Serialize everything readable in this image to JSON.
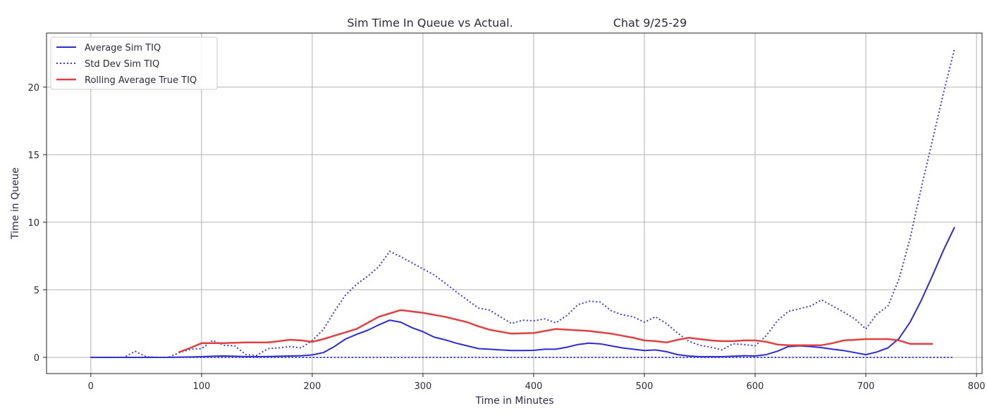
{
  "chart_data": {
    "type": "line",
    "title_left": "Sim Time In Queue vs Actual.",
    "title_right": "Chat 9/25-29",
    "xlabel": "Time in Minutes",
    "ylabel": "Time in Queue",
    "xlim": [
      -40,
      805
    ],
    "ylim": [
      -1.2,
      24.0
    ],
    "xticks": [
      0,
      100,
      200,
      300,
      400,
      500,
      600,
      700,
      800
    ],
    "yticks": [
      0,
      5,
      10,
      15,
      20
    ],
    "grid": true,
    "legend_position": "upper-left",
    "colors": {
      "sim_avg": "#2b2bd6",
      "sim_std": "#3a3ad8",
      "true_avg": "#e04040",
      "grid": "#b0b0b0"
    },
    "series": [
      {
        "name": "Average Sim TIQ",
        "style": "solid",
        "color": "#2b2bd6",
        "x": [
          0,
          10,
          20,
          30,
          40,
          50,
          60,
          70,
          80,
          90,
          100,
          110,
          120,
          130,
          140,
          150,
          160,
          170,
          180,
          190,
          200,
          210,
          220,
          230,
          240,
          250,
          260,
          270,
          280,
          290,
          300,
          310,
          320,
          330,
          340,
          350,
          360,
          370,
          380,
          390,
          400,
          410,
          420,
          430,
          440,
          450,
          460,
          470,
          480,
          490,
          500,
          510,
          520,
          530,
          540,
          550,
          560,
          570,
          580,
          590,
          600,
          610,
          620,
          630,
          640,
          650,
          660,
          670,
          680,
          690,
          700,
          710,
          720,
          730,
          740,
          750,
          760,
          770,
          780
        ],
        "values": [
          0,
          0,
          0,
          0,
          0,
          0,
          0,
          0,
          0.02,
          0.03,
          0.05,
          0.08,
          0.1,
          0.08,
          0.05,
          0.05,
          0.06,
          0.08,
          0.1,
          0.12,
          0.18,
          0.35,
          0.8,
          1.35,
          1.7,
          2.0,
          2.4,
          2.75,
          2.6,
          2.2,
          1.9,
          1.5,
          1.3,
          1.05,
          0.85,
          0.65,
          0.6,
          0.55,
          0.5,
          0.5,
          0.52,
          0.6,
          0.6,
          0.75,
          0.95,
          1.05,
          1.0,
          0.85,
          0.7,
          0.6,
          0.5,
          0.55,
          0.42,
          0.2,
          0.1,
          0.05,
          0.05,
          0.05,
          0.08,
          0.12,
          0.1,
          0.2,
          0.45,
          0.8,
          0.85,
          0.8,
          0.72,
          0.6,
          0.5,
          0.35,
          0.2,
          0.4,
          0.7,
          1.4,
          2.6,
          4.2,
          6.0,
          7.9,
          9.6
        ]
      },
      {
        "name": "Std Dev Sim TIQ",
        "style": "dotted",
        "color": "#3a3ad8",
        "x": [
          0,
          10,
          20,
          30,
          40,
          50,
          60,
          70,
          80,
          90,
          100,
          110,
          120,
          130,
          140,
          150,
          160,
          170,
          180,
          190,
          200,
          210,
          220,
          230,
          240,
          250,
          260,
          270,
          280,
          290,
          300,
          310,
          320,
          330,
          340,
          350,
          360,
          370,
          380,
          390,
          400,
          410,
          420,
          430,
          440,
          450,
          460,
          470,
          480,
          490,
          500,
          510,
          520,
          530,
          540,
          550,
          560,
          570,
          580,
          590,
          600,
          610,
          620,
          630,
          640,
          650,
          660,
          670,
          680,
          690,
          700,
          710,
          720,
          730,
          740,
          750,
          760,
          770,
          780
        ],
        "values": [
          0,
          0,
          0,
          0,
          0.45,
          0.05,
          0,
          0,
          0.35,
          0.6,
          0.65,
          1.25,
          0.9,
          0.85,
          0.2,
          0.15,
          0.65,
          0.7,
          0.8,
          0.7,
          1.25,
          2.05,
          3.4,
          4.6,
          5.4,
          6.0,
          6.7,
          7.85,
          7.45,
          7.0,
          6.55,
          6.1,
          5.5,
          4.85,
          4.25,
          3.65,
          3.5,
          3.0,
          2.5,
          2.75,
          2.7,
          2.85,
          2.55,
          3.1,
          3.9,
          4.15,
          4.1,
          3.45,
          3.15,
          3.0,
          2.6,
          3.0,
          2.5,
          1.8,
          1.2,
          0.9,
          0.75,
          0.55,
          1.0,
          0.95,
          0.85,
          1.6,
          2.7,
          3.4,
          3.6,
          3.8,
          4.25,
          3.8,
          3.35,
          2.85,
          2.1,
          3.2,
          3.8,
          5.8,
          8.8,
          12.5,
          16.0,
          19.5,
          22.8
        ]
      },
      {
        "name": "Std Dev Sim TIQ baseline",
        "style": "dotted",
        "color": "#3a3ad8",
        "x": [
          0,
          780
        ],
        "values": [
          0,
          0
        ]
      },
      {
        "name": "Rolling Average True TIQ",
        "style": "solid",
        "color": "#e04040",
        "x": [
          80,
          90,
          100,
          110,
          120,
          130,
          140,
          150,
          160,
          170,
          180,
          190,
          200,
          210,
          220,
          230,
          240,
          250,
          260,
          270,
          280,
          290,
          300,
          310,
          320,
          330,
          340,
          350,
          360,
          370,
          380,
          390,
          400,
          410,
          420,
          430,
          440,
          450,
          460,
          470,
          480,
          490,
          500,
          510,
          520,
          530,
          540,
          550,
          560,
          570,
          580,
          590,
          600,
          610,
          620,
          630,
          640,
          650,
          660,
          670,
          680,
          690,
          700,
          710,
          720,
          730,
          740,
          750,
          760
        ],
        "values": [
          0.4,
          0.7,
          1.05,
          1.05,
          1.05,
          1.08,
          1.1,
          1.1,
          1.1,
          1.2,
          1.3,
          1.25,
          1.15,
          1.35,
          1.6,
          1.85,
          2.1,
          2.55,
          3.0,
          3.25,
          3.5,
          3.4,
          3.3,
          3.15,
          3.0,
          2.8,
          2.6,
          2.3,
          2.05,
          1.9,
          1.75,
          1.78,
          1.8,
          1.95,
          2.1,
          2.05,
          2.0,
          1.95,
          1.85,
          1.75,
          1.6,
          1.45,
          1.25,
          1.2,
          1.1,
          1.3,
          1.45,
          1.35,
          1.25,
          1.2,
          1.2,
          1.25,
          1.25,
          1.15,
          0.95,
          0.9,
          0.9,
          0.9,
          0.9,
          1.05,
          1.25,
          1.3,
          1.35,
          1.35,
          1.35,
          1.25,
          1.0,
          1.0,
          1.0
        ]
      }
    ]
  }
}
